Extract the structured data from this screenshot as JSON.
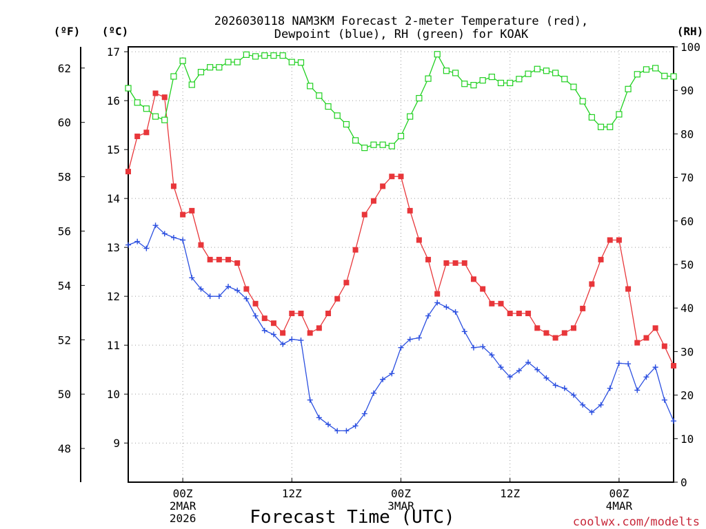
{
  "chart_data": {
    "type": "line",
    "title_line1": "2026030118 NAM3KM Forecast 2-meter Temperature (red),",
    "title_line2": "Dewpoint (blue), RH (green) for KOAK",
    "axes": {
      "left_outer_label": "(ºF)",
      "left_inner_label": "(ºC)",
      "right_label": "(RH)",
      "xlabel": "Forecast Time (UTC)",
      "celsius_range": [
        8.2,
        17.1
      ],
      "celsius_ticks": [
        "9",
        "10",
        "11",
        "12",
        "13",
        "14",
        "15",
        "16",
        "17"
      ],
      "fahrenheit_ticks": [
        "48",
        "50",
        "52",
        "54",
        "56",
        "58",
        "60",
        "62"
      ],
      "rh_range": [
        0,
        100
      ],
      "rh_ticks": [
        "0",
        "10",
        "20",
        "30",
        "40",
        "50",
        "60",
        "70",
        "80",
        "90",
        "100"
      ],
      "x_range_hours": [
        -6,
        54
      ],
      "x_ticks": [
        {
          "hour": 0,
          "line1": "00Z",
          "line2": "2MAR",
          "line3": "2026"
        },
        {
          "hour": 12,
          "line1": "12Z",
          "line2": "",
          "line3": ""
        },
        {
          "hour": 24,
          "line1": "00Z",
          "line2": "3MAR",
          "line3": ""
        },
        {
          "hour": 36,
          "line1": "12Z",
          "line2": "",
          "line3": ""
        },
        {
          "hour": 48,
          "line1": "00Z",
          "line2": "4MAR",
          "line3": ""
        }
      ],
      "grid": "dotted"
    },
    "x_hours": [
      -6,
      -5,
      -4,
      -3,
      -2,
      -1,
      0,
      1,
      2,
      3,
      4,
      5,
      6,
      7,
      8,
      9,
      10,
      11,
      12,
      13,
      14,
      15,
      16,
      17,
      18,
      19,
      20,
      21,
      22,
      23,
      24,
      25,
      26,
      27,
      28,
      29,
      30,
      31,
      32,
      33,
      34,
      35,
      36,
      37,
      38,
      39,
      40,
      41,
      42,
      43,
      44,
      45,
      46,
      47,
      48,
      49,
      50,
      51,
      52,
      53,
      54
    ],
    "series": [
      {
        "name": "Temperature",
        "units": "°C",
        "color": "#e8363a",
        "marker": "filled-square",
        "values": [
          14.55,
          15.27,
          15.35,
          16.15,
          16.07,
          14.25,
          13.67,
          13.75,
          13.05,
          12.75,
          12.75,
          12.75,
          12.68,
          12.15,
          11.85,
          11.55,
          11.45,
          11.25,
          11.65,
          11.65,
          11.25,
          11.35,
          11.65,
          11.95,
          12.28,
          12.95,
          13.67,
          13.95,
          14.25,
          14.45,
          14.45,
          13.75,
          13.15,
          12.75,
          12.05,
          12.68,
          12.68,
          12.68,
          12.35,
          12.15,
          11.85,
          11.85,
          11.65,
          11.65,
          11.65,
          11.35,
          11.25,
          11.15,
          11.25,
          11.35,
          11.75,
          12.25,
          12.75,
          13.15,
          13.15,
          12.15,
          11.05,
          11.15,
          11.35,
          10.98,
          10.58
        ]
      },
      {
        "name": "Dewpoint",
        "units": "°C",
        "color": "#2b4fe0",
        "marker": "plus",
        "values": [
          13.05,
          13.12,
          12.98,
          13.45,
          13.28,
          13.2,
          13.15,
          12.38,
          12.15,
          12.0,
          12.0,
          12.2,
          12.12,
          11.95,
          11.6,
          11.3,
          11.22,
          11.02,
          11.12,
          11.1,
          9.88,
          9.52,
          9.38,
          9.25,
          9.25,
          9.35,
          9.6,
          10.02,
          10.3,
          10.42,
          10.95,
          11.12,
          11.15,
          11.6,
          11.87,
          11.78,
          11.68,
          11.28,
          10.95,
          10.97,
          10.8,
          10.55,
          10.35,
          10.48,
          10.65,
          10.5,
          10.33,
          10.18,
          10.12,
          9.98,
          9.78,
          9.63,
          9.78,
          10.12,
          10.63,
          10.62,
          10.08,
          10.35,
          10.55,
          9.88,
          9.45
        ]
      },
      {
        "name": "Relative Humidity",
        "units": "%",
        "color": "#1fd01f",
        "marker": "open-square",
        "values": [
          90.5,
          87.2,
          85.8,
          84.0,
          83.2,
          93.2,
          96.8,
          91.3,
          94.2,
          95.3,
          95.3,
          96.5,
          96.5,
          98.2,
          97.8,
          98.0,
          98.0,
          98.0,
          96.5,
          96.4,
          91.0,
          88.8,
          86.3,
          84.2,
          82.2,
          78.5,
          76.8,
          77.5,
          77.5,
          77.2,
          79.5,
          84.0,
          88.2,
          92.7,
          98.3,
          94.5,
          94.0,
          91.5,
          91.2,
          92.3,
          93.1,
          91.7,
          91.7,
          92.6,
          93.8,
          94.9,
          94.5,
          94.0,
          92.6,
          90.8,
          87.5,
          83.8,
          81.6,
          81.6,
          84.5,
          90.3,
          93.7,
          94.8,
          95.1,
          93.3,
          93.2
        ]
      }
    ],
    "credit": "coolwx.com/modelts"
  }
}
